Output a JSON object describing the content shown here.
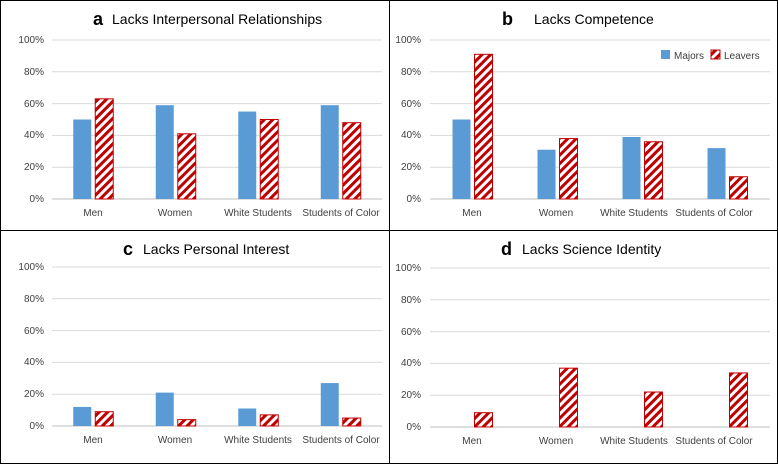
{
  "colors": {
    "majors": "#5b9bd5",
    "leavers_stripe": "#c00000",
    "leavers_bg": "#ffffff"
  },
  "legend": {
    "majors": "Majors",
    "leavers": "Leavers"
  },
  "chart_data": [
    {
      "letter": "a",
      "type": "bar",
      "title": "Lacks Interpersonal Relationships",
      "categories": [
        "Men",
        "Women",
        "White Students",
        "Students of Color"
      ],
      "yticks": [
        "0%",
        "20%",
        "40%",
        "60%",
        "80%",
        "100%"
      ],
      "ylim": [
        0,
        100
      ],
      "series": [
        {
          "name": "Majors",
          "values": [
            50,
            59,
            55,
            59
          ]
        },
        {
          "name": "Leavers",
          "values": [
            63,
            41,
            50,
            48
          ]
        }
      ]
    },
    {
      "letter": "b",
      "type": "bar",
      "title": "Lacks Competence",
      "categories": [
        "Men",
        "Women",
        "White Students",
        "Students of Color"
      ],
      "yticks": [
        "0%",
        "20%",
        "40%",
        "60%",
        "80%",
        "100%"
      ],
      "ylim": [
        0,
        100
      ],
      "legend": "top-right",
      "series": [
        {
          "name": "Majors",
          "values": [
            50,
            31,
            39,
            32
          ]
        },
        {
          "name": "Leavers",
          "values": [
            91,
            38,
            36,
            14
          ]
        }
      ]
    },
    {
      "letter": "c",
      "type": "bar",
      "title": "Lacks Personal Interest",
      "categories": [
        "Men",
        "Women",
        "White Students",
        "Students of Color"
      ],
      "yticks": [
        "0%",
        "20%",
        "40%",
        "60%",
        "80%",
        "100%"
      ],
      "ylim": [
        0,
        100
      ],
      "series": [
        {
          "name": "Majors",
          "values": [
            12,
            21,
            11,
            27
          ]
        },
        {
          "name": "Leavers",
          "values": [
            9,
            4,
            7,
            5
          ]
        }
      ]
    },
    {
      "letter": "d",
      "type": "bar",
      "title": "Lacks Science Identity",
      "categories": [
        "Men",
        "Women",
        "White Students",
        "Students of Color"
      ],
      "yticks": [
        "0%",
        "20%",
        "40%",
        "60%",
        "80%",
        "100%"
      ],
      "ylim": [
        0,
        100
      ],
      "series": [
        {
          "name": "Majors",
          "values": [
            0,
            0,
            0,
            0
          ]
        },
        {
          "name": "Leavers",
          "values": [
            9,
            37,
            22,
            34
          ]
        }
      ]
    }
  ]
}
